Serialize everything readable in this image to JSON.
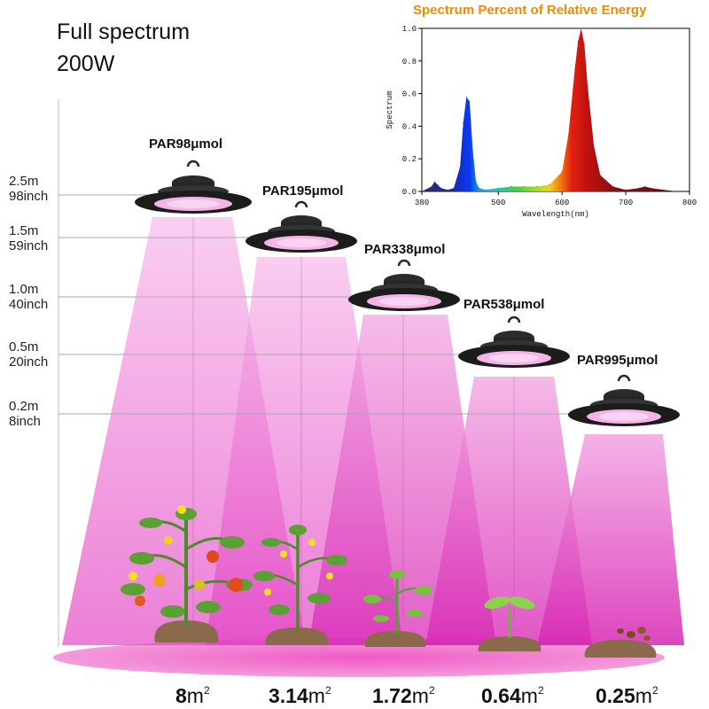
{
  "header": {
    "line1": "Full spectrum",
    "line2": "200W"
  },
  "heights": [
    {
      "m": "2.5m",
      "inch": "98inch"
    },
    {
      "m": "1.5m",
      "inch": "59inch"
    },
    {
      "m": "1.0m",
      "inch": "40inch"
    },
    {
      "m": "0.5m",
      "inch": "20inch"
    },
    {
      "m": "0.2m",
      "inch": "8inch"
    }
  ],
  "lamps": [
    {
      "par": "PAR98μmol",
      "area": "8",
      "unit": "m",
      "sup": "2"
    },
    {
      "par": "PAR195μmol",
      "area": "3.14",
      "unit": "m",
      "sup": "2"
    },
    {
      "par": "PAR338μmol",
      "area": "1.72",
      "unit": "m",
      "sup": "2"
    },
    {
      "par": "PAR538μmol",
      "area": "0.64",
      "unit": "m",
      "sup": "2"
    },
    {
      "par": "PAR995μmol",
      "area": "0.25",
      "unit": "m",
      "sup": "2"
    }
  ],
  "colors": {
    "beam": "#e64fc8",
    "floor": "#ee3fb5",
    "soil": "#8a6a4a",
    "lamp": "#1c1c1c",
    "chart_title": "#f08a00"
  },
  "chart_data": {
    "type": "area",
    "title": "Spectrum Percent of Relative Energy",
    "xlabel": "Wavelength(nm)",
    "ylabel": "Spectrum",
    "xlim": [
      380,
      800
    ],
    "ylim": [
      0,
      1.0
    ],
    "x_ticks": [
      "380",
      "500",
      "600",
      "700",
      "800"
    ],
    "y_ticks": [
      "0.0",
      "0.2",
      "0.4",
      "0.6",
      "0.8",
      "1.0"
    ],
    "x": [
      380,
      395,
      400,
      405,
      410,
      420,
      430,
      440,
      445,
      450,
      455,
      460,
      465,
      470,
      480,
      500,
      520,
      540,
      560,
      580,
      600,
      610,
      620,
      625,
      630,
      635,
      640,
      650,
      660,
      680,
      700,
      720,
      730,
      740,
      760,
      780,
      800
    ],
    "values": [
      0.0,
      0.03,
      0.06,
      0.04,
      0.02,
      0.01,
      0.02,
      0.15,
      0.42,
      0.58,
      0.55,
      0.25,
      0.06,
      0.02,
      0.01,
      0.02,
      0.03,
      0.03,
      0.03,
      0.04,
      0.12,
      0.35,
      0.75,
      0.92,
      1.0,
      0.9,
      0.65,
      0.28,
      0.1,
      0.03,
      0.01,
      0.02,
      0.03,
      0.02,
      0.01,
      0.0,
      0.0
    ]
  }
}
